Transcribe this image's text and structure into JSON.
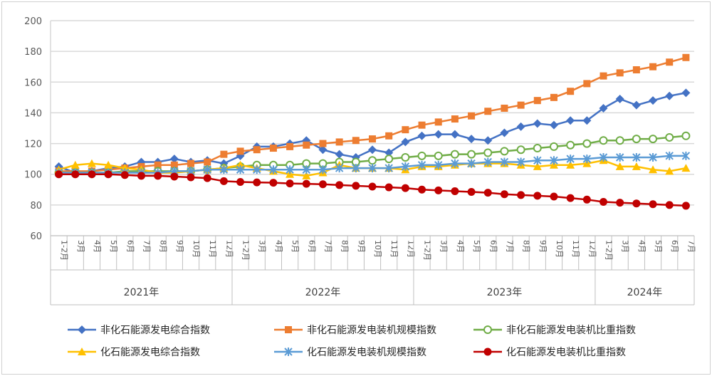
{
  "chart_data": {
    "type": "line",
    "title": "",
    "xlabel": "",
    "ylabel": "",
    "ylim": [
      60,
      200
    ],
    "yticks": [
      60,
      80,
      100,
      120,
      140,
      160,
      180,
      200
    ],
    "grid": true,
    "legend_position": "bottom",
    "groups": [
      {
        "label": "2021年",
        "categories": [
          "1-2月",
          "3月",
          "4月",
          "5月",
          "6月",
          "7月",
          "8月",
          "9月",
          "10月",
          "11月",
          "12月"
        ]
      },
      {
        "label": "2022年",
        "categories": [
          "1-2月",
          "3月",
          "4月",
          "5月",
          "6月",
          "7月",
          "8月",
          "9月",
          "10月",
          "11月",
          "12月"
        ]
      },
      {
        "label": "2023年",
        "categories": [
          "1-2月",
          "3月",
          "4月",
          "5月",
          "6月",
          "7月",
          "8月",
          "9月",
          "10月",
          "11月",
          "12月"
        ]
      },
      {
        "label": "2024年",
        "categories": [
          "1-2月",
          "3月",
          "4月",
          "5月",
          "6月",
          "7月"
        ]
      }
    ],
    "series": [
      {
        "name": "非化石能源发电综合指数",
        "color": "#4472C4",
        "marker": "diamond",
        "values": [
          105,
          101,
          102,
          104,
          105,
          108,
          108,
          110,
          108,
          109,
          107,
          112,
          118,
          118,
          120,
          122,
          116,
          113,
          111,
          116,
          114,
          121,
          125,
          126,
          126,
          123,
          122,
          127,
          131,
          133,
          132,
          135,
          135,
          143,
          149,
          145,
          148,
          151,
          153
        ]
      },
      {
        "name": "非化石能源发电装机规模指数",
        "color": "#ED7D31",
        "marker": "square",
        "values": [
          102,
          102,
          102,
          103,
          104,
          105,
          106,
          106,
          107,
          108,
          113,
          115,
          116,
          117,
          118,
          119,
          120,
          121,
          122,
          123,
          125,
          129,
          132,
          134,
          136,
          138,
          141,
          143,
          145,
          148,
          150,
          154,
          159,
          164,
          166,
          168,
          170,
          173,
          176
        ]
      },
      {
        "name": "非化石能源发电装机比重指数",
        "color": "#70AD47",
        "marker": "circle-open",
        "values": [
          101,
          101,
          101,
          101,
          102,
          102,
          102,
          102,
          102,
          103,
          104,
          105,
          106,
          106,
          106,
          107,
          107,
          108,
          108,
          109,
          110,
          111,
          112,
          112,
          113,
          113,
          114,
          115,
          116,
          117,
          118,
          119,
          120,
          122,
          122,
          123,
          123,
          124,
          125
        ]
      },
      {
        "name": "化石能源发电综合指数",
        "color": "#FFC000",
        "marker": "triangle",
        "values": [
          103,
          106,
          107,
          106,
          104,
          103,
          101,
          101,
          102,
          103,
          104,
          106,
          104,
          102,
          100,
          99,
          101,
          106,
          104,
          104,
          104,
          103,
          105,
          105,
          106,
          107,
          107,
          107,
          106,
          105,
          106,
          106,
          107,
          109,
          105,
          105,
          103,
          102,
          104
        ]
      },
      {
        "name": "化石能源发电装机规模指数",
        "color": "#5B9BD5",
        "marker": "star",
        "values": [
          101,
          101,
          101,
          101,
          101,
          101,
          101,
          102,
          102,
          103,
          103,
          103,
          103,
          103,
          103,
          103,
          103,
          104,
          104,
          104,
          104,
          105,
          106,
          106,
          107,
          107,
          108,
          108,
          108,
          109,
          109,
          110,
          110,
          111,
          111,
          111,
          111,
          112,
          112
        ]
      },
      {
        "name": "化石能源发电装机比重指数",
        "color": "#C00000",
        "marker": "circle",
        "values": [
          100,
          100,
          100,
          100,
          99.5,
          99,
          99,
          98.5,
          98,
          97.5,
          95.5,
          95,
          94.7,
          94.5,
          94,
          93.8,
          93.5,
          93,
          92.5,
          92,
          91.5,
          91,
          90,
          89.5,
          89,
          88.5,
          88,
          87,
          86.5,
          86,
          85.5,
          84.5,
          83.5,
          82,
          81.5,
          81,
          80.5,
          80,
          79.5
        ]
      }
    ]
  }
}
